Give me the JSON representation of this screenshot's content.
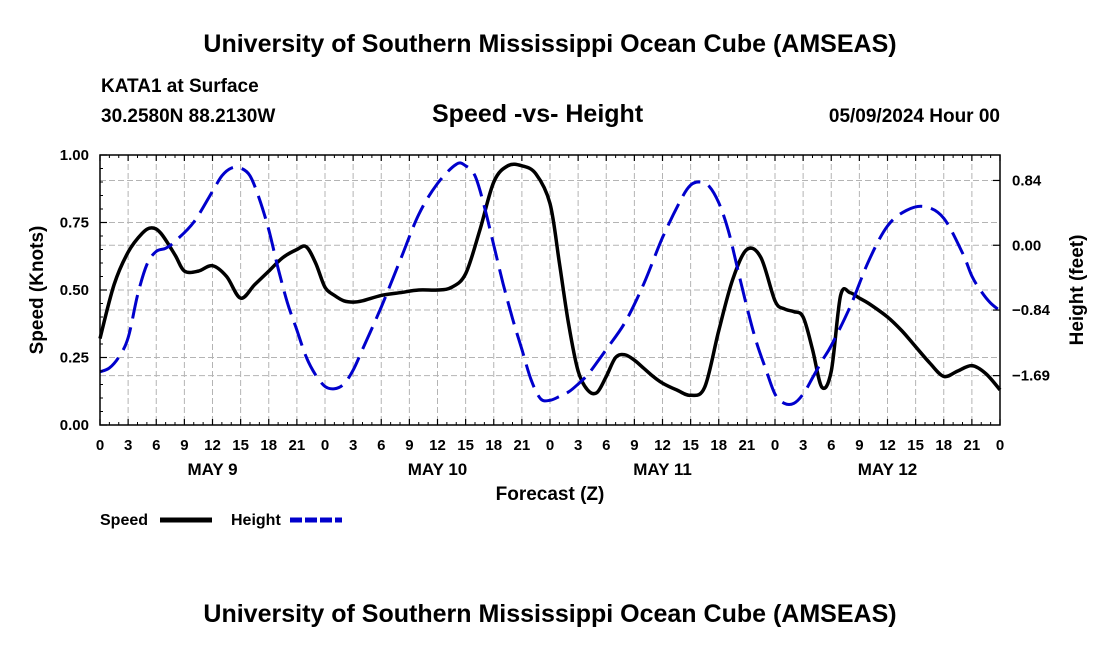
{
  "header": {
    "title": "University of Southern Mississippi Ocean Cube (AMSEAS)",
    "station": "KATA1 at Surface",
    "coords": "30.2580N  88.2130W",
    "date": "05/09/2024 Hour 00"
  },
  "footer": {
    "title": "University of Southern Mississippi Ocean Cube (AMSEAS)"
  },
  "chart_data": {
    "type": "line",
    "title": "Speed -vs- Height",
    "xlabel": "Forecast (Z)",
    "ylabel_left": "Speed (Knots)",
    "ylabel_right": "Height (feet)",
    "x_range_hours": [
      0,
      96
    ],
    "x_tick_labels": [
      "0",
      "3",
      "6",
      "9",
      "12",
      "15",
      "18",
      "21",
      "0",
      "3",
      "6",
      "9",
      "12",
      "15",
      "18",
      "21",
      "0",
      "3",
      "6",
      "9",
      "12",
      "15",
      "18",
      "21",
      "0",
      "3",
      "6",
      "9",
      "12",
      "15",
      "18",
      "21",
      "0"
    ],
    "day_labels": [
      {
        "label": "MAY 9",
        "hour": 12
      },
      {
        "label": "MAY 10",
        "hour": 36
      },
      {
        "label": "MAY 11",
        "hour": 60
      },
      {
        "label": "MAY 12",
        "hour": 84
      }
    ],
    "left_axis": {
      "ylim": [
        0,
        1.0
      ],
      "ticks": [
        "0.00",
        "0.25",
        "0.50",
        "0.75",
        "1.00"
      ],
      "tick_values": [
        0,
        0.25,
        0.5,
        0.75,
        1.0
      ]
    },
    "right_axis": {
      "ylim": [
        -2.33,
        1.17
      ],
      "ticks": [
        "0.84",
        "0.00",
        "−0.84",
        "−1.69"
      ],
      "tick_values": [
        0.84,
        0.0,
        -0.84,
        -1.69
      ]
    },
    "grid": true,
    "legend_position": "bottom-left",
    "series": [
      {
        "name": "Speed",
        "axis": "left",
        "color": "#000000",
        "dash": "solid",
        "x": [
          0,
          1.5,
          3,
          4.5,
          5.5,
          6.5,
          8,
          9,
          10.5,
          12,
          13.5,
          15,
          16.5,
          18,
          19.5,
          21,
          22,
          23,
          24,
          25,
          26,
          27,
          28,
          30,
          32,
          34,
          36,
          37.5,
          39,
          40.5,
          42,
          43.5,
          45,
          46.5,
          48,
          49,
          50,
          51,
          52,
          53,
          54,
          55,
          56,
          57,
          58,
          59,
          60,
          61.5,
          63,
          64.5,
          66,
          67.5,
          69,
          70.5,
          72,
          73,
          74,
          75,
          76,
          77,
          78,
          79,
          80,
          81,
          82,
          84,
          85.5,
          87,
          88.5,
          90,
          91.5,
          93,
          94.5,
          96
        ],
        "values": [
          0.32,
          0.52,
          0.64,
          0.71,
          0.73,
          0.71,
          0.63,
          0.57,
          0.57,
          0.59,
          0.55,
          0.47,
          0.52,
          0.57,
          0.62,
          0.65,
          0.66,
          0.6,
          0.51,
          0.48,
          0.46,
          0.455,
          0.46,
          0.48,
          0.49,
          0.5,
          0.5,
          0.51,
          0.56,
          0.72,
          0.9,
          0.96,
          0.96,
          0.93,
          0.82,
          0.6,
          0.37,
          0.2,
          0.13,
          0.12,
          0.18,
          0.25,
          0.26,
          0.24,
          0.21,
          0.18,
          0.155,
          0.13,
          0.11,
          0.14,
          0.35,
          0.54,
          0.65,
          0.62,
          0.46,
          0.43,
          0.42,
          0.4,
          0.28,
          0.14,
          0.2,
          0.48,
          0.49,
          0.47,
          0.45,
          0.4,
          0.35,
          0.29,
          0.23,
          0.18,
          0.2,
          0.22,
          0.19,
          0.13
        ]
      },
      {
        "name": "Height",
        "axis": "right",
        "color": "#0000cc",
        "dash": "dashed",
        "x": [
          0,
          1,
          2,
          3,
          4,
          5,
          6,
          7,
          8,
          10,
          12,
          13,
          14,
          15,
          16,
          17,
          18,
          19,
          20,
          21,
          22,
          23,
          24,
          25,
          26,
          27,
          28,
          30,
          32,
          34,
          36,
          38,
          39,
          40,
          41,
          42,
          43,
          44,
          45,
          46,
          47,
          48,
          49,
          50,
          51,
          52,
          53,
          54,
          56,
          58,
          60,
          62,
          63,
          64,
          65,
          66,
          67,
          68,
          69,
          70,
          71,
          72,
          73,
          74,
          75,
          76,
          77,
          78,
          80,
          82,
          84,
          86,
          88,
          90,
          92,
          93,
          94,
          95,
          96
        ],
        "values": [
          -1.64,
          -1.59,
          -1.45,
          -1.2,
          -0.65,
          -0.25,
          -0.08,
          -0.04,
          0.05,
          0.3,
          0.7,
          0.9,
          1.0,
          1.0,
          0.9,
          0.6,
          0.2,
          -0.3,
          -0.75,
          -1.1,
          -1.45,
          -1.68,
          -1.83,
          -1.86,
          -1.8,
          -1.62,
          -1.35,
          -0.8,
          -0.2,
          0.4,
          0.8,
          1.05,
          1.03,
          0.9,
          0.5,
          0.0,
          -0.5,
          -0.95,
          -1.35,
          -1.75,
          -1.99,
          -2.01,
          -1.96,
          -1.9,
          -1.8,
          -1.68,
          -1.52,
          -1.35,
          -1.0,
          -0.5,
          0.1,
          0.6,
          0.78,
          0.82,
          0.76,
          0.55,
          0.2,
          -0.3,
          -0.8,
          -1.25,
          -1.6,
          -1.93,
          -2.05,
          -2.05,
          -1.93,
          -1.72,
          -1.5,
          -1.3,
          -0.8,
          -0.2,
          0.25,
          0.45,
          0.5,
          0.35,
          -0.1,
          -0.4,
          -0.6,
          -0.75,
          -0.85
        ]
      }
    ]
  }
}
